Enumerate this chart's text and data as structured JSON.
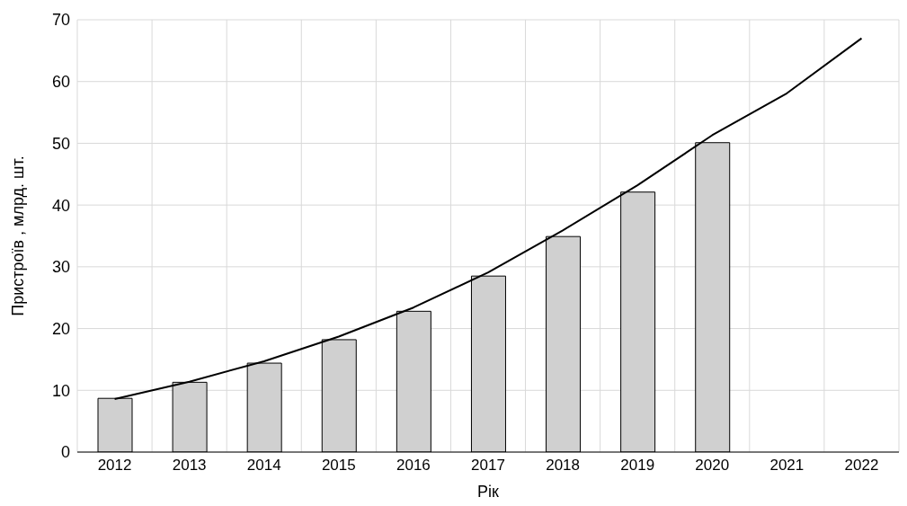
{
  "chart_data": {
    "type": "bar",
    "xlabel": "Рік",
    "ylabel": "Пристроїв , млрд. шт.",
    "categories": [
      "2012",
      "2013",
      "2014",
      "2015",
      "2016",
      "2017",
      "2018",
      "2019",
      "2020",
      "2021",
      "2022"
    ],
    "series": [
      {
        "color": "#d0d0d0",
        "values": [
          8.7,
          11.3,
          14.4,
          18.2,
          22.8,
          28.5,
          34.9,
          42.1,
          50.1,
          null,
          null
        ]
      },
      {
        "type": "line",
        "color": "#000000",
        "values": [
          8.6,
          11.4,
          14.7,
          18.7,
          23.4,
          29.1,
          35.9,
          43.2,
          51.3,
          58.1,
          67.0
        ]
      }
    ],
    "ylim": [
      0,
      70
    ],
    "yticks": [
      0,
      10,
      20,
      30,
      40,
      50,
      60,
      70
    ],
    "grid": true,
    "line_style": "solid"
  }
}
